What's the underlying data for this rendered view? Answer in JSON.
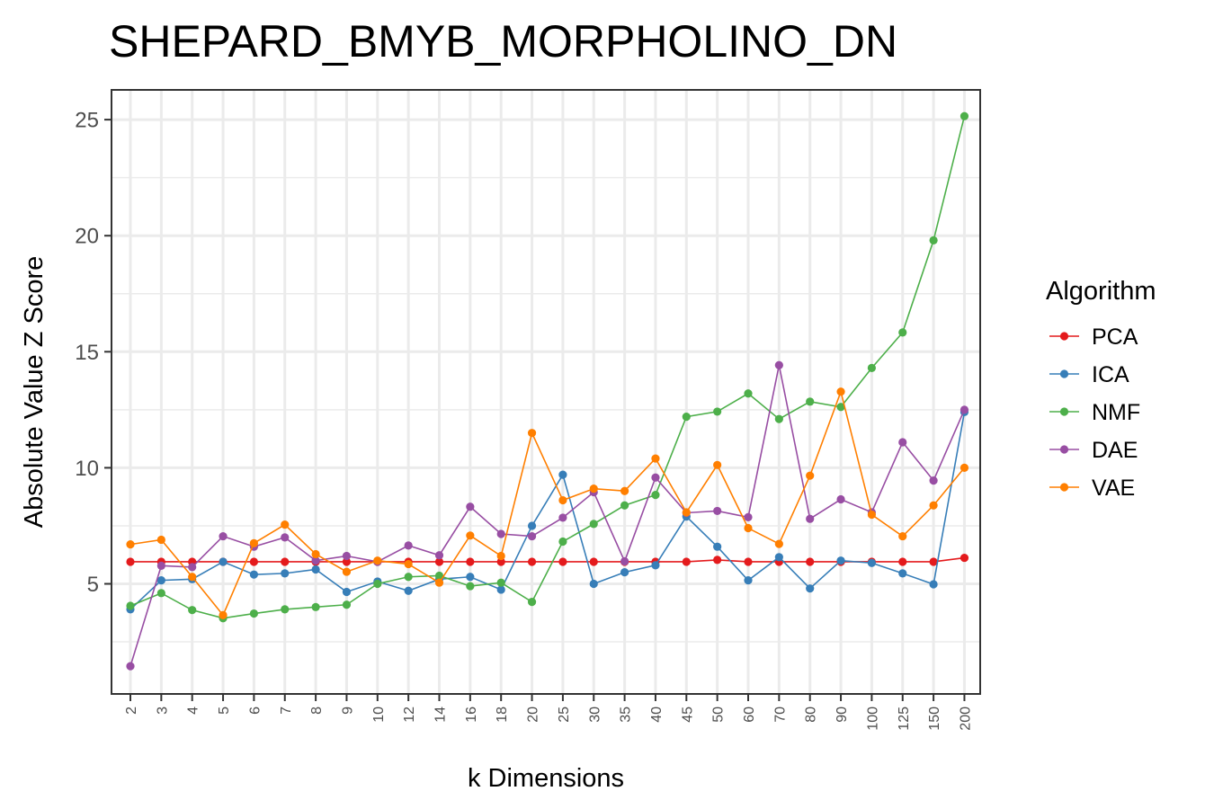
{
  "chart_data": {
    "type": "line",
    "title": "SHEPARD_BMYB_MORPHOLINO_DN",
    "xlabel": "k Dimensions",
    "ylabel": "Absolute Value Z Score",
    "categories": [
      "2",
      "3",
      "4",
      "5",
      "6",
      "7",
      "8",
      "9",
      "10",
      "12",
      "14",
      "16",
      "18",
      "20",
      "25",
      "30",
      "35",
      "40",
      "45",
      "50",
      "60",
      "70",
      "80",
      "90",
      "100",
      "125",
      "150",
      "200"
    ],
    "ylim": [
      0.3,
      26.3
    ],
    "yticks": [
      5,
      10,
      15,
      20,
      25
    ],
    "grid": true,
    "legend": {
      "title": "Algorithm",
      "position": "right"
    },
    "series": [
      {
        "name": "PCA",
        "color": "#e41a1c",
        "values": [
          5.95,
          5.95,
          5.95,
          5.95,
          5.95,
          5.95,
          5.95,
          5.95,
          5.95,
          5.95,
          5.95,
          5.95,
          5.95,
          5.95,
          5.95,
          5.95,
          5.95,
          5.95,
          5.95,
          6.03,
          5.95,
          5.95,
          5.95,
          5.95,
          5.95,
          5.95,
          5.95,
          6.12
        ]
      },
      {
        "name": "ICA",
        "color": "#377eb8",
        "values": [
          3.9,
          5.15,
          5.2,
          5.95,
          5.4,
          5.45,
          5.62,
          4.65,
          5.1,
          4.7,
          5.2,
          5.3,
          4.75,
          7.5,
          9.7,
          5.0,
          5.5,
          5.8,
          7.9,
          6.6,
          5.15,
          6.15,
          4.8,
          6.0,
          5.9,
          5.45,
          4.98,
          12.4
        ]
      },
      {
        "name": "NMF",
        "color": "#4daf4a",
        "values": [
          4.05,
          4.6,
          3.87,
          3.52,
          3.72,
          3.9,
          4.0,
          4.1,
          5.0,
          5.3,
          5.35,
          4.9,
          5.05,
          4.22,
          6.82,
          7.58,
          8.38,
          8.83,
          12.2,
          12.42,
          13.2,
          12.1,
          12.85,
          12.62,
          14.3,
          15.83,
          19.8,
          25.15
        ]
      },
      {
        "name": "DAE",
        "color": "#984ea3",
        "values": [
          1.45,
          5.78,
          5.72,
          7.05,
          6.6,
          7.0,
          6.0,
          6.2,
          5.95,
          6.65,
          6.23,
          8.32,
          7.15,
          7.05,
          7.85,
          8.95,
          5.97,
          9.58,
          8.06,
          8.14,
          7.87,
          14.42,
          7.8,
          8.64,
          8.08,
          11.1,
          9.45,
          12.5
        ]
      },
      {
        "name": "VAE",
        "color": "#ff7f00",
        "values": [
          6.7,
          6.9,
          5.3,
          3.65,
          6.75,
          7.55,
          6.28,
          5.52,
          6.0,
          5.85,
          5.05,
          7.08,
          6.2,
          11.5,
          8.6,
          9.1,
          9.0,
          10.4,
          8.08,
          10.12,
          7.4,
          6.72,
          9.66,
          13.28,
          7.98,
          7.05,
          8.38,
          10.0
        ]
      }
    ]
  }
}
